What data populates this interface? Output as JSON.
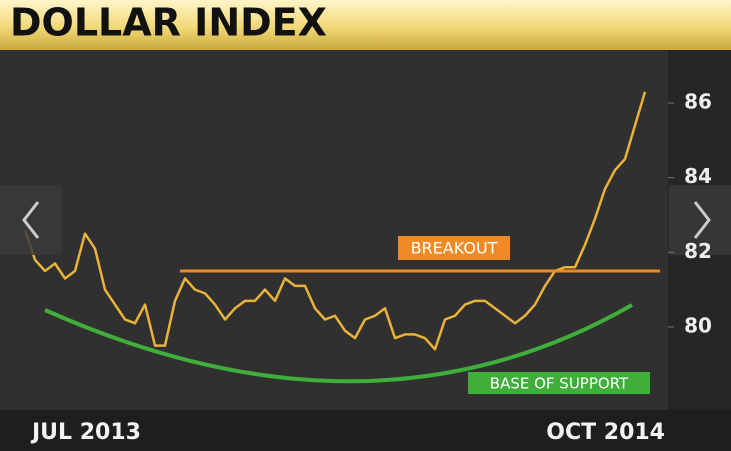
{
  "chart_data": {
    "type": "line",
    "title": "DOLLAR INDEX",
    "categories": [
      "JUL 2013",
      null,
      null,
      null,
      null,
      null,
      null,
      null,
      null,
      null,
      null,
      null,
      null,
      null,
      null,
      null,
      null,
      null,
      null,
      null,
      null,
      null,
      null,
      null,
      null,
      null,
      null,
      null,
      null,
      null,
      null,
      null,
      null,
      null,
      null,
      null,
      null,
      null,
      null,
      null,
      null,
      null,
      null,
      null,
      null,
      null,
      null,
      null,
      null,
      null,
      null,
      null,
      null,
      null,
      null,
      null,
      null,
      null,
      null,
      null,
      null,
      null,
      "OCT 2014"
    ],
    "series": [
      {
        "color": "#e9b33a",
        "values": [
          82.6,
          81.8,
          81.5,
          81.7,
          81.3,
          81.5,
          82.5,
          82.1,
          81.0,
          80.6,
          80.2,
          80.1,
          80.6,
          79.5,
          79.5,
          80.7,
          81.3,
          81.0,
          80.9,
          80.6,
          80.2,
          80.5,
          80.7,
          80.7,
          81.0,
          80.7,
          81.3,
          81.1,
          81.1,
          80.5,
          80.2,
          80.3,
          79.9,
          79.7,
          80.2,
          80.3,
          80.5,
          79.7,
          79.8,
          79.8,
          79.7,
          79.4,
          80.2,
          80.3,
          80.6,
          80.7,
          80.7,
          80.5,
          80.3,
          80.1,
          80.3,
          80.6,
          81.1,
          81.5,
          81.6,
          81.6,
          82.2,
          82.9,
          83.7,
          84.2,
          84.5,
          85.4,
          86.3
        ]
      }
    ],
    "ylim": [
      78,
      87
    ],
    "yticks": [
      80,
      82,
      84,
      86
    ],
    "annotations": [
      {
        "label": "BREAKOUT",
        "value": 81.5,
        "color": "#f08a24"
      },
      {
        "label": "BASE OF SUPPORT",
        "color": "#3fae3a"
      }
    ]
  }
}
